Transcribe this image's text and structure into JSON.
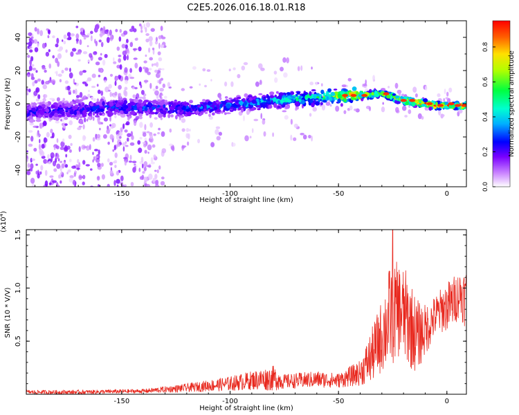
{
  "title": "C2E5.2026.016.18.01.R18",
  "chart_data": [
    {
      "type": "heatmap",
      "title": "C2E5.2026.016.18.01.R18",
      "xlabel": "Height of straight line (km)",
      "ylabel": "Frequency (Hz)",
      "xlim": [
        -194,
        9
      ],
      "ylim": [
        -50,
        50
      ],
      "x_ticks": [
        -150,
        -100,
        -50,
        0
      ],
      "y_ticks": [
        -40,
        -20,
        0,
        20,
        40
      ],
      "colorbar": {
        "label": "Normalized spectral amplitude",
        "range": [
          0.0,
          0.95
        ],
        "ticks": [
          0.0,
          0.2,
          0.4,
          0.6,
          0.8
        ],
        "colormap": "rainbow",
        "low_color": "#ffffff",
        "high_color": "#ff0000"
      },
      "ridge": {
        "description_points": [
          {
            "x": -190,
            "y": -5,
            "amplitude": 0.25
          },
          {
            "x": -150,
            "y": -2,
            "amplitude": 0.3
          },
          {
            "x": -120,
            "y": -3,
            "amplitude": 0.3
          },
          {
            "x": -100,
            "y": -1,
            "amplitude": 0.35
          },
          {
            "x": -80,
            "y": 2,
            "amplitude": 0.45
          },
          {
            "x": -60,
            "y": 4,
            "amplitude": 0.55
          },
          {
            "x": -45,
            "y": 5,
            "amplitude": 0.85
          },
          {
            "x": -30,
            "y": 6,
            "amplitude": 0.6
          },
          {
            "x": -20,
            "y": 2,
            "amplitude": 0.85
          },
          {
            "x": -5,
            "y": -1,
            "amplitude": 0.9
          },
          {
            "x": 8,
            "y": -1,
            "amplitude": 0.9
          }
        ]
      },
      "scatter_region": {
        "x": [
          -194,
          -130
        ],
        "y": [
          -50,
          50
        ]
      }
    },
    {
      "type": "line",
      "xlabel": "Height of straight line (km)",
      "ylabel": "SNR (10 * V/V)",
      "y_multiplier_label": "(x10",
      "y_multiplier_exp": "4",
      "y_multiplier_close": ")",
      "xlim": [
        -194,
        9
      ],
      "ylim": [
        0,
        1.55
      ],
      "x_ticks": [
        -150,
        -100,
        -50,
        0
      ],
      "y_ticks": [
        0.5,
        1.0,
        1.5
      ],
      "y_tick_labels": [
        "0.5",
        "1.0",
        "1.5"
      ],
      "color": "#e8281e",
      "series": [
        {
          "envelope_x": [
            -194,
            -170,
            -140,
            -120,
            -100,
            -90,
            -80,
            -75,
            -60,
            -50,
            -40,
            -35,
            -30,
            -26,
            -22,
            -18,
            -14,
            -10,
            -6,
            -2,
            2,
            6,
            9
          ],
          "envelope_mean": [
            0.02,
            0.02,
            0.03,
            0.06,
            0.1,
            0.13,
            0.15,
            0.12,
            0.14,
            0.13,
            0.2,
            0.35,
            0.55,
            0.75,
            0.8,
            0.7,
            0.55,
            0.6,
            0.72,
            0.8,
            0.85,
            0.95,
            0.9
          ],
          "envelope_amp": [
            0.02,
            0.02,
            0.02,
            0.04,
            0.07,
            0.09,
            0.12,
            0.07,
            0.08,
            0.07,
            0.12,
            0.25,
            0.35,
            0.5,
            0.45,
            0.45,
            0.35,
            0.25,
            0.2,
            0.22,
            0.25,
            0.22,
            0.3
          ],
          "peak": {
            "x": -25,
            "y": 1.55
          }
        }
      ]
    }
  ]
}
